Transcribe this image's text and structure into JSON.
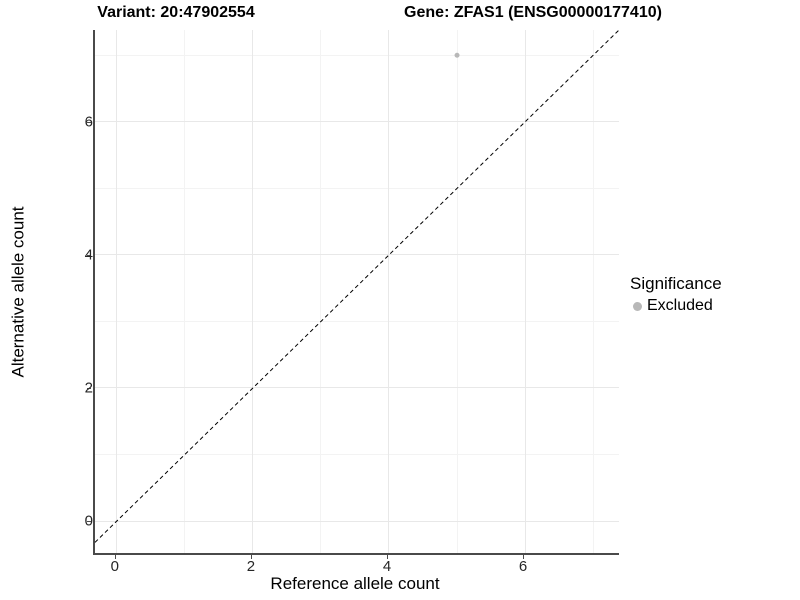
{
  "header": {
    "variant_title": "Variant: 20:47902554",
    "gene_title": "Gene: ZFAS1 (ENSG00000177410)"
  },
  "legend": {
    "title": "Significance",
    "items": [
      {
        "label": "Excluded",
        "color": "#b8b8b8"
      }
    ]
  },
  "chart_data": {
    "type": "scatter",
    "title": "Variant: 20:47902554 | Gene: ZFAS1 (ENSG00000177410)",
    "xlabel": "Reference allele count",
    "ylabel": "Alternative allele count",
    "xlim": [
      -0.32,
      7.38
    ],
    "ylim": [
      -0.48,
      7.38
    ],
    "x_ticks": [
      0,
      2,
      4,
      6
    ],
    "y_ticks": [
      0,
      2,
      4,
      6
    ],
    "x_minor_ticks": [
      1,
      3,
      5,
      7
    ],
    "y_minor_ticks": [
      1,
      3,
      5,
      7
    ],
    "grid": "major+minor",
    "legend_position": "right",
    "series": [
      {
        "name": "Excluded",
        "color": "#b8b8b8",
        "point_radius": 2.5,
        "points": [
          {
            "x": 5,
            "y": 7
          }
        ]
      }
    ],
    "identity_line": {
      "equation": "y = x",
      "style": "dashed",
      "color": "#000000"
    }
  },
  "colors": {
    "background": "#ffffff",
    "grid_major": "#e8e8e8",
    "grid_minor": "#f3f3f3",
    "axis_line": "#4a4a4a",
    "tick_label": "#262626",
    "point": "#b8b8b8"
  }
}
